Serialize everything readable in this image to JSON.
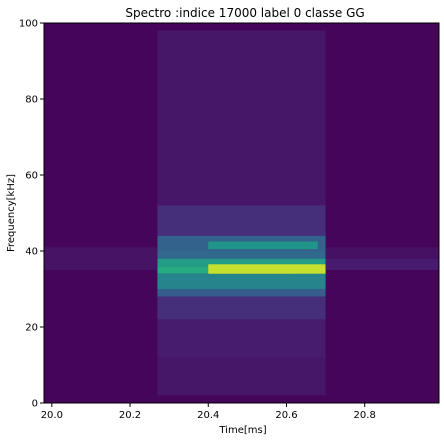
{
  "chart_data": {
    "type": "heatmap",
    "title": "Spectro :indice 17000 label 0 classe GG",
    "xlabel": "Time[ms]",
    "ylabel": "Frequency[kHz]",
    "xlim": [
      19.98,
      20.99
    ],
    "ylim": [
      0,
      100
    ],
    "xticks": [
      20.0,
      20.2,
      20.4,
      20.6,
      20.8
    ],
    "xtick_labels": [
      "20.0",
      "20.2",
      "20.4",
      "20.6",
      "20.8"
    ],
    "yticks": [
      0,
      20,
      40,
      60,
      80,
      100
    ],
    "ytick_labels": [
      "0",
      "20",
      "40",
      "60",
      "80",
      "100"
    ],
    "colormap": "viridis",
    "grid": false,
    "background_level": 0.02,
    "bands": [
      {
        "t0": 20.27,
        "t1": 20.7,
        "f0": 2,
        "f1": 98,
        "level": 0.08
      },
      {
        "t0": 20.27,
        "t1": 20.7,
        "f0": 44,
        "f1": 52,
        "level": 0.16
      },
      {
        "t0": 20.27,
        "t1": 20.7,
        "f0": 40,
        "f1": 44,
        "level": 0.32
      },
      {
        "t0": 20.4,
        "t1": 20.68,
        "f0": 40.5,
        "f1": 42.5,
        "level": 0.52
      },
      {
        "t0": 20.27,
        "t1": 20.7,
        "f0": 38,
        "f1": 40,
        "level": 0.34
      },
      {
        "t0": 20.27,
        "t1": 20.7,
        "f0": 36,
        "f1": 38,
        "level": 0.55
      },
      {
        "t0": 20.27,
        "t1": 20.7,
        "f0": 34,
        "f1": 36,
        "level": 0.62
      },
      {
        "t0": 20.4,
        "t1": 20.7,
        "f0": 34,
        "f1": 36.5,
        "level": 0.92
      },
      {
        "t0": 20.4,
        "t1": 20.62,
        "f0": 32,
        "f1": 34,
        "level": 0.98
      },
      {
        "t0": 20.27,
        "t1": 20.7,
        "f0": 30,
        "f1": 34,
        "level": 0.45
      },
      {
        "t0": 20.27,
        "t1": 20.7,
        "f0": 28,
        "f1": 30,
        "level": 0.3
      },
      {
        "t0": 20.27,
        "t1": 20.7,
        "f0": 22,
        "f1": 28,
        "level": 0.16
      },
      {
        "t0": 20.27,
        "t1": 20.7,
        "f0": 12,
        "f1": 22,
        "level": 0.1
      },
      {
        "t0": 19.98,
        "t1": 20.27,
        "f0": 35,
        "f1": 41,
        "level": 0.07
      },
      {
        "t0": 20.7,
        "t1": 20.99,
        "f0": 35,
        "f1": 38,
        "level": 0.1
      },
      {
        "t0": 20.7,
        "t1": 20.99,
        "f0": 38,
        "f1": 41,
        "level": 0.06
      }
    ]
  }
}
